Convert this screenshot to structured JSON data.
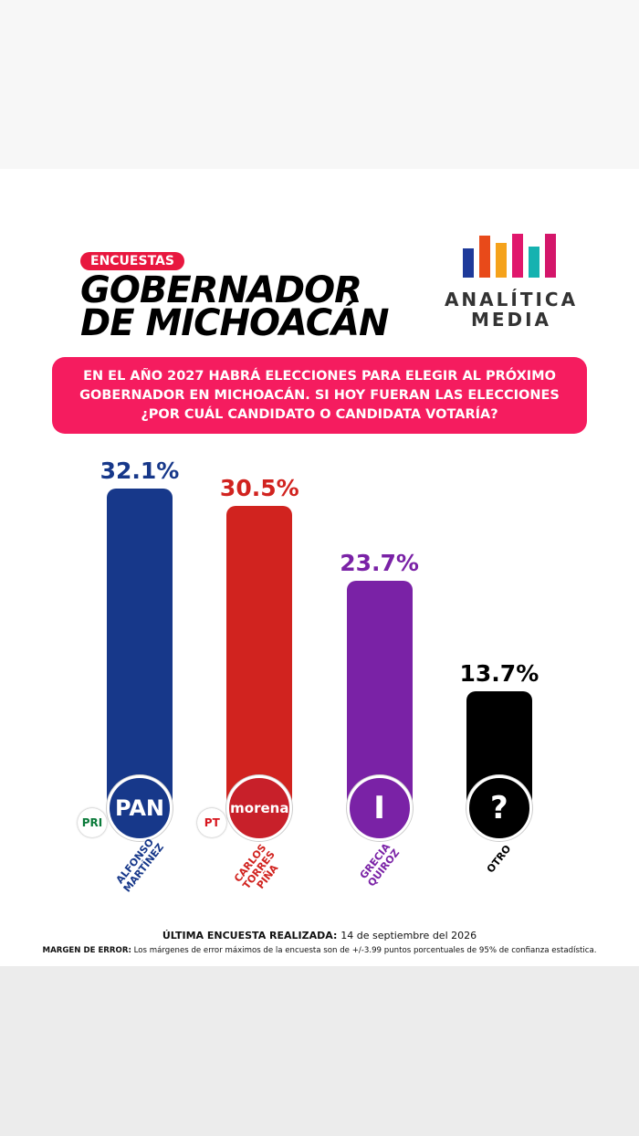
{
  "header": {
    "tag": "ENCUESTAS",
    "title_lines": [
      "GOBERNADOR",
      "DE MICHOACÁN"
    ],
    "logo_lines": [
      "ANALÍTICA",
      "MEDIA"
    ]
  },
  "question": [
    "EN EL AÑO 2027 HABRÁ ELECCIONES PARA ELEGIR AL PRÓXIMO",
    "GOBERNADOR EN MICHOACÁN. SI HOY FUERAN LAS ELECCIONES",
    "¿POR CUÁL CANDIDATO O CANDIDATA VOTARÍA?"
  ],
  "chart_data": {
    "type": "bar",
    "categories": [
      "ALFONSO MARTÍNEZ",
      "CARLOS TORRES PIÑA",
      "GRECIA QUIROZ",
      "OTRO"
    ],
    "values": [
      32.1,
      30.5,
      23.7,
      13.7
    ],
    "value_labels": [
      "32.1%",
      "30.5%",
      "23.7%",
      "13.7%"
    ],
    "colors": [
      "#17388a",
      "#d1231f",
      "#7a22a6",
      "#000000"
    ],
    "badges": [
      "PAN",
      "morena",
      "I",
      "?"
    ],
    "coalition": [
      "PRI",
      "PT",
      null,
      null
    ]
  },
  "footer": {
    "date_label": "ÚLTIMA ENCUESTA REALIZADA:",
    "date": "14 de septiembre del 2026",
    "margin_label": "MARGEN DE ERROR:",
    "margin_text": "Los márgenes de error máximos de la encuesta son de +/-3.99 puntos porcentuales de 95% de confianza estadística."
  }
}
